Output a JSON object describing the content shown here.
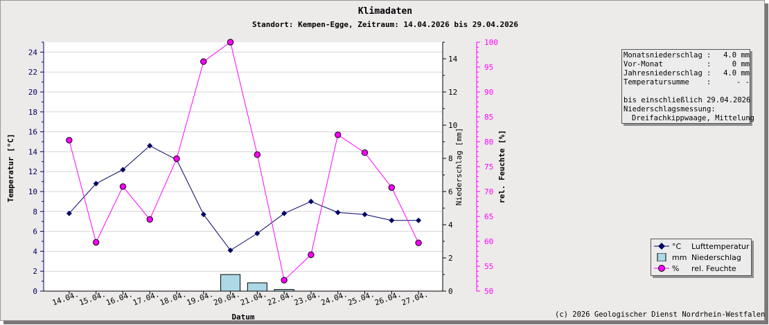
{
  "title": "Klimadaten",
  "subtitle": "Standort: Kempen-Egge, Zeitraum: 14.04.2026 bis 29.04.2026",
  "info_panel": {
    "rows": [
      {
        "label": "Monatsniederschlag",
        "value": "4.0 mm"
      },
      {
        "label": "Vor-Monat",
        "value": "0 mm"
      },
      {
        "label": "Jahresniederschlag",
        "value": "4.0 mm"
      },
      {
        "label": "Temperatursumme",
        "value": "- -"
      }
    ],
    "until": "bis einschließlich 29.04.2026",
    "measure_label": "Niederschlagsmessung:",
    "measure_value": "Dreifachkippwaage, Mittelung"
  },
  "legend": [
    {
      "unit": "°C",
      "name": "Lufttemperatur",
      "symbol": "diamond",
      "color": "#000066"
    },
    {
      "unit": "mm",
      "name": "Niederschlag",
      "symbol": "bar",
      "color": "#add8e6"
    },
    {
      "unit": "%",
      "name": "rel. Feuchte",
      "symbol": "circle",
      "color": "#ff00ff"
    }
  ],
  "copyright": "(c) 2026 Geologischer Dienst Nordrhein-Westfalen",
  "chart_data": {
    "type": "line",
    "categories": [
      "14.04.",
      "15.04.",
      "16.04.",
      "17.04.",
      "18.04.",
      "19.04.",
      "20.04.",
      "21.04.",
      "22.04.",
      "23.04.",
      "24.04.",
      "25.04.",
      "26.04.",
      "27.04."
    ],
    "xlabel": "Datum",
    "grid": true,
    "axes": {
      "temperature": {
        "label": "Temperatur [°C]",
        "min": 0,
        "max": 25,
        "ticks": [
          0,
          2,
          4,
          6,
          8,
          10,
          12,
          14,
          16,
          18,
          20,
          22,
          24
        ],
        "color": "#000066",
        "side": "left"
      },
      "precipitation": {
        "label": "Niederschlag [mm]",
        "min": 0,
        "max": 15,
        "ticks": [
          0,
          2,
          4,
          6,
          8,
          10,
          12,
          14
        ],
        "color": "#000000",
        "side": "right"
      },
      "humidity": {
        "label": "rel. Feuchte [%]",
        "min": 50,
        "max": 100,
        "ticks": [
          50,
          55,
          60,
          65,
          70,
          75,
          80,
          85,
          90,
          95,
          100
        ],
        "color": "#ff00ff",
        "side": "right"
      }
    },
    "series": [
      {
        "name": "Lufttemperatur",
        "unit": "°C",
        "axis": "temperature",
        "kind": "line",
        "marker": "diamond",
        "color": "#000066",
        "values": [
          7.8,
          10.8,
          12.2,
          14.6,
          13.2,
          7.7,
          4.1,
          5.8,
          7.8,
          9.0,
          7.9,
          7.7,
          7.1,
          7.1
        ]
      },
      {
        "name": "Niederschlag",
        "unit": "mm",
        "axis": "precipitation",
        "kind": "bar",
        "color": "#add8e6",
        "values": [
          0,
          0,
          0,
          0,
          0,
          0,
          1.0,
          0.5,
          0.1,
          0,
          0,
          0,
          0,
          0
        ]
      },
      {
        "name": "rel. Feuchte",
        "unit": "%",
        "axis": "humidity",
        "kind": "line",
        "marker": "circle",
        "color": "#ff00ff",
        "values": [
          80.3,
          59.8,
          71.0,
          64.4,
          76.6,
          96.1,
          100.0,
          77.4,
          52.2,
          57.3,
          81.4,
          77.8,
          70.8,
          59.7
        ]
      }
    ]
  }
}
